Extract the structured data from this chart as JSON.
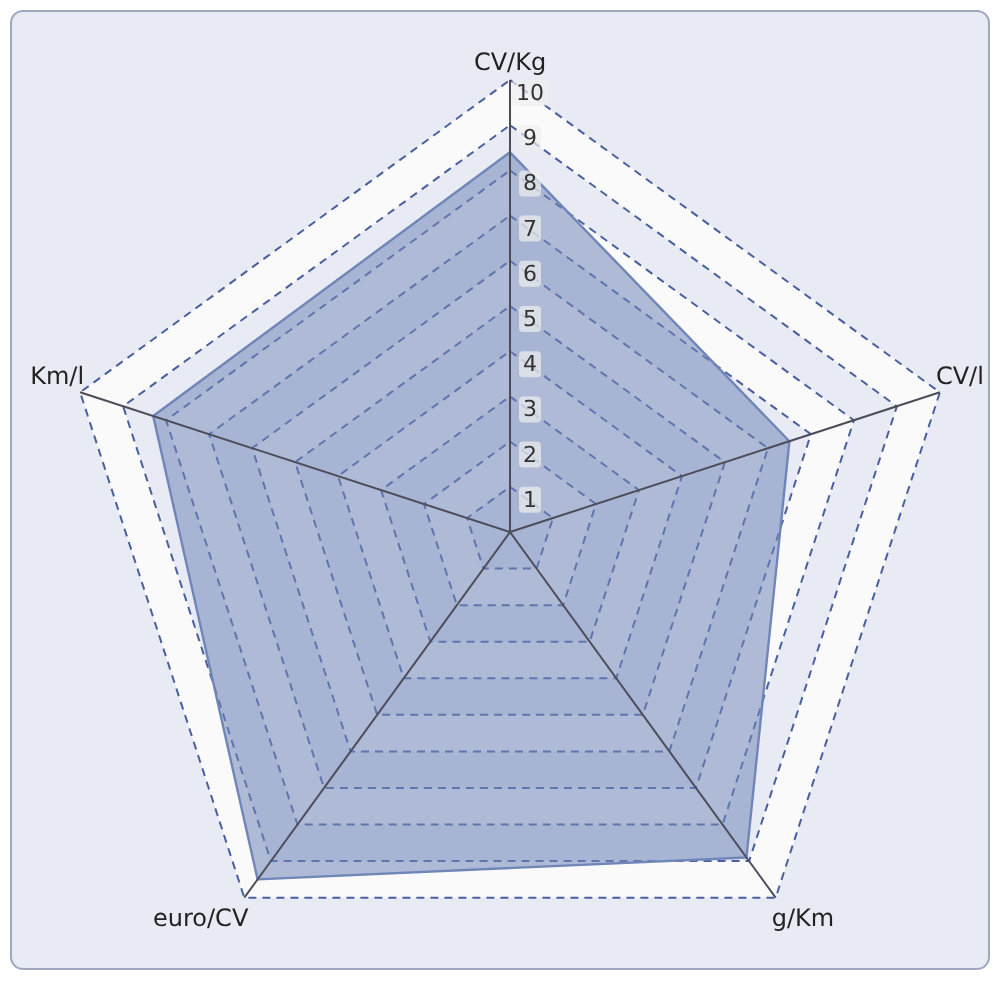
{
  "chart_data": {
    "type": "radar",
    "categories": [
      "CV/Kg",
      "CV/l",
      "g/Km",
      "euro/CV",
      "Km/l"
    ],
    "series": [
      {
        "color": "#7186b8",
        "values": [
          8.4,
          6.5,
          8.9,
          9.5,
          8.3
        ]
      }
    ],
    "ylim": [
      0,
      10
    ],
    "yticks": [
      1,
      2,
      3,
      4,
      5,
      6,
      7,
      8,
      9,
      10
    ],
    "grid": true,
    "line_style": "dashed"
  }
}
